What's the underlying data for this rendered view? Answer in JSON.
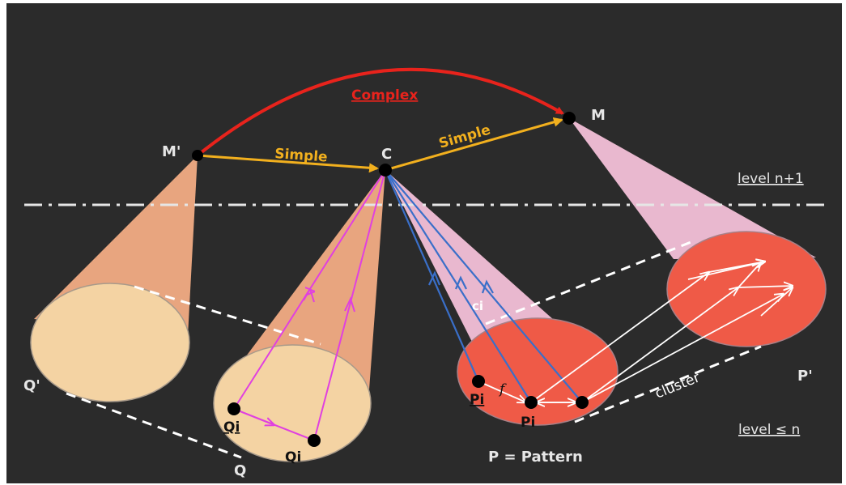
{
  "labels": {
    "complex": "Complex",
    "simple_left": "Simple",
    "simple_right": "Simple",
    "m_prime": "M'",
    "c": "C",
    "m": "M",
    "level_top": "level n+1",
    "level_bottom": "level ≤ n",
    "q_prime": "Q'",
    "q": "Q",
    "qi_left": "Qi",
    "qi_right": "Qi",
    "ci": "ci",
    "f": "f",
    "pi_left": "Pi",
    "pi_center": "Pi",
    "cluster": "cluster",
    "p_prime": "P'",
    "pattern": "P = Pattern"
  },
  "colors": {
    "background": "#2b2b2b",
    "complex_arrow": "#e8231c",
    "simple_arrow": "#f2b01e",
    "orange_cone": "#e8a57f",
    "pink_cone": "#e9b8cf",
    "beige_disc": "#f4d3a3",
    "red_disc": "#ef5a47",
    "magenta_path": "#e040e0",
    "blue_path": "#3a6fc9"
  }
}
